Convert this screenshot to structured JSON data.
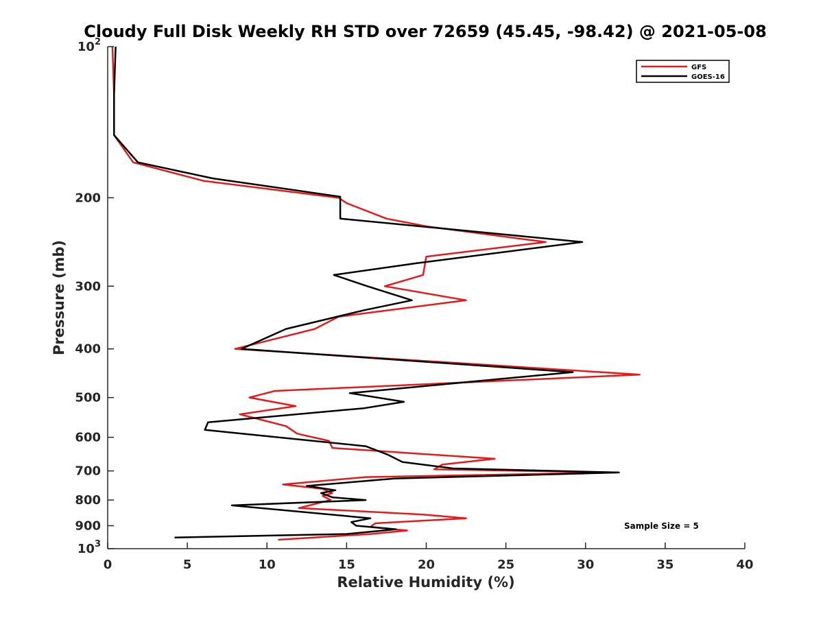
{
  "chart_data": {
    "type": "line",
    "title": "Cloudy Full Disk Weekly RH STD over 72659 (45.45, -98.42) @ 2021-05-08",
    "xlabel": "Relative Humidity (%)",
    "ylabel": "Pressure (mb)",
    "xlim": [
      0,
      40
    ],
    "ylim": [
      100,
      1000
    ],
    "yscale": "log",
    "y_reversed": true,
    "grid": false,
    "legend_position": "top-right",
    "x_ticks": [
      {
        "value": 0,
        "label": "0"
      },
      {
        "value": 5,
        "label": "5"
      },
      {
        "value": 10,
        "label": "10"
      },
      {
        "value": 15,
        "label": "15"
      },
      {
        "value": 20,
        "label": "20"
      },
      {
        "value": 25,
        "label": "25"
      },
      {
        "value": 30,
        "label": "30"
      },
      {
        "value": 35,
        "label": "35"
      },
      {
        "value": 40,
        "label": "40"
      }
    ],
    "y_ticks": [
      {
        "value": 100,
        "base": "10",
        "exp": "2"
      },
      {
        "value": 200,
        "label": "200"
      },
      {
        "value": 300,
        "label": "300"
      },
      {
        "value": 400,
        "label": "400"
      },
      {
        "value": 500,
        "label": "500"
      },
      {
        "value": 600,
        "label": "600"
      },
      {
        "value": 700,
        "label": "700"
      },
      {
        "value": 800,
        "label": "800"
      },
      {
        "value": 900,
        "label": "900"
      },
      {
        "value": 1000,
        "base": "10",
        "exp": "3"
      }
    ],
    "annotation": "Sample Size = 5",
    "series": [
      {
        "name": "GFS",
        "color": "#e41a1c",
        "points": [
          [
            0.3,
            100
          ],
          [
            0.4,
            125
          ],
          [
            0.4,
            150
          ],
          [
            1.6,
            170
          ],
          [
            6.0,
            185
          ],
          [
            14.5,
            200
          ],
          [
            15.0,
            205
          ],
          [
            17.5,
            220
          ],
          [
            20.0,
            228
          ],
          [
            27.5,
            245
          ],
          [
            20.0,
            262
          ],
          [
            19.8,
            285
          ],
          [
            17.4,
            300
          ],
          [
            22.5,
            320
          ],
          [
            14.5,
            345
          ],
          [
            13.0,
            365
          ],
          [
            8.0,
            400
          ],
          [
            33.4,
            450
          ],
          [
            10.5,
            485
          ],
          [
            8.9,
            500
          ],
          [
            11.8,
            520
          ],
          [
            8.3,
            540
          ],
          [
            11.2,
            570
          ],
          [
            11.9,
            590
          ],
          [
            13.9,
            610
          ],
          [
            14.1,
            630
          ],
          [
            24.3,
            662
          ],
          [
            21.0,
            680
          ],
          [
            20.5,
            695
          ],
          [
            32.0,
            705
          ],
          [
            16.2,
            720
          ],
          [
            11.0,
            745
          ],
          [
            13.5,
            760
          ],
          [
            14.1,
            775
          ],
          [
            13.5,
            785
          ],
          [
            14.0,
            800
          ],
          [
            12.0,
            830
          ],
          [
            19.8,
            855
          ],
          [
            22.5,
            870
          ],
          [
            16.8,
            890
          ],
          [
            16.5,
            905
          ],
          [
            18.8,
            920
          ],
          [
            16.5,
            935
          ],
          [
            10.7,
            960
          ]
        ]
      },
      {
        "name": "GOES-16",
        "color": "#000000",
        "points": [
          [
            0.5,
            100
          ],
          [
            0.4,
            125
          ],
          [
            0.4,
            150
          ],
          [
            1.9,
            170
          ],
          [
            6.6,
            183
          ],
          [
            14.6,
            199
          ],
          [
            14.6,
            220
          ],
          [
            29.8,
            245
          ],
          [
            19.4,
            270
          ],
          [
            14.2,
            285
          ],
          [
            16.3,
            300
          ],
          [
            19.1,
            320
          ],
          [
            16.1,
            335
          ],
          [
            11.2,
            365
          ],
          [
            8.4,
            400
          ],
          [
            29.2,
            445
          ],
          [
            15.2,
            490
          ],
          [
            18.6,
            510
          ],
          [
            16.1,
            525
          ],
          [
            6.3,
            560
          ],
          [
            6.1,
            580
          ],
          [
            16.2,
            625
          ],
          [
            17.6,
            650
          ],
          [
            18.5,
            672
          ],
          [
            21.7,
            692
          ],
          [
            32.1,
            705
          ],
          [
            18.0,
            725
          ],
          [
            12.5,
            750
          ],
          [
            14.3,
            765
          ],
          [
            13.4,
            775
          ],
          [
            14.1,
            790
          ],
          [
            16.2,
            800
          ],
          [
            7.8,
            820
          ],
          [
            16.5,
            870
          ],
          [
            15.3,
            885
          ],
          [
            15.6,
            900
          ],
          [
            18.1,
            915
          ],
          [
            15.0,
            935
          ],
          [
            4.2,
            950
          ]
        ]
      }
    ]
  }
}
